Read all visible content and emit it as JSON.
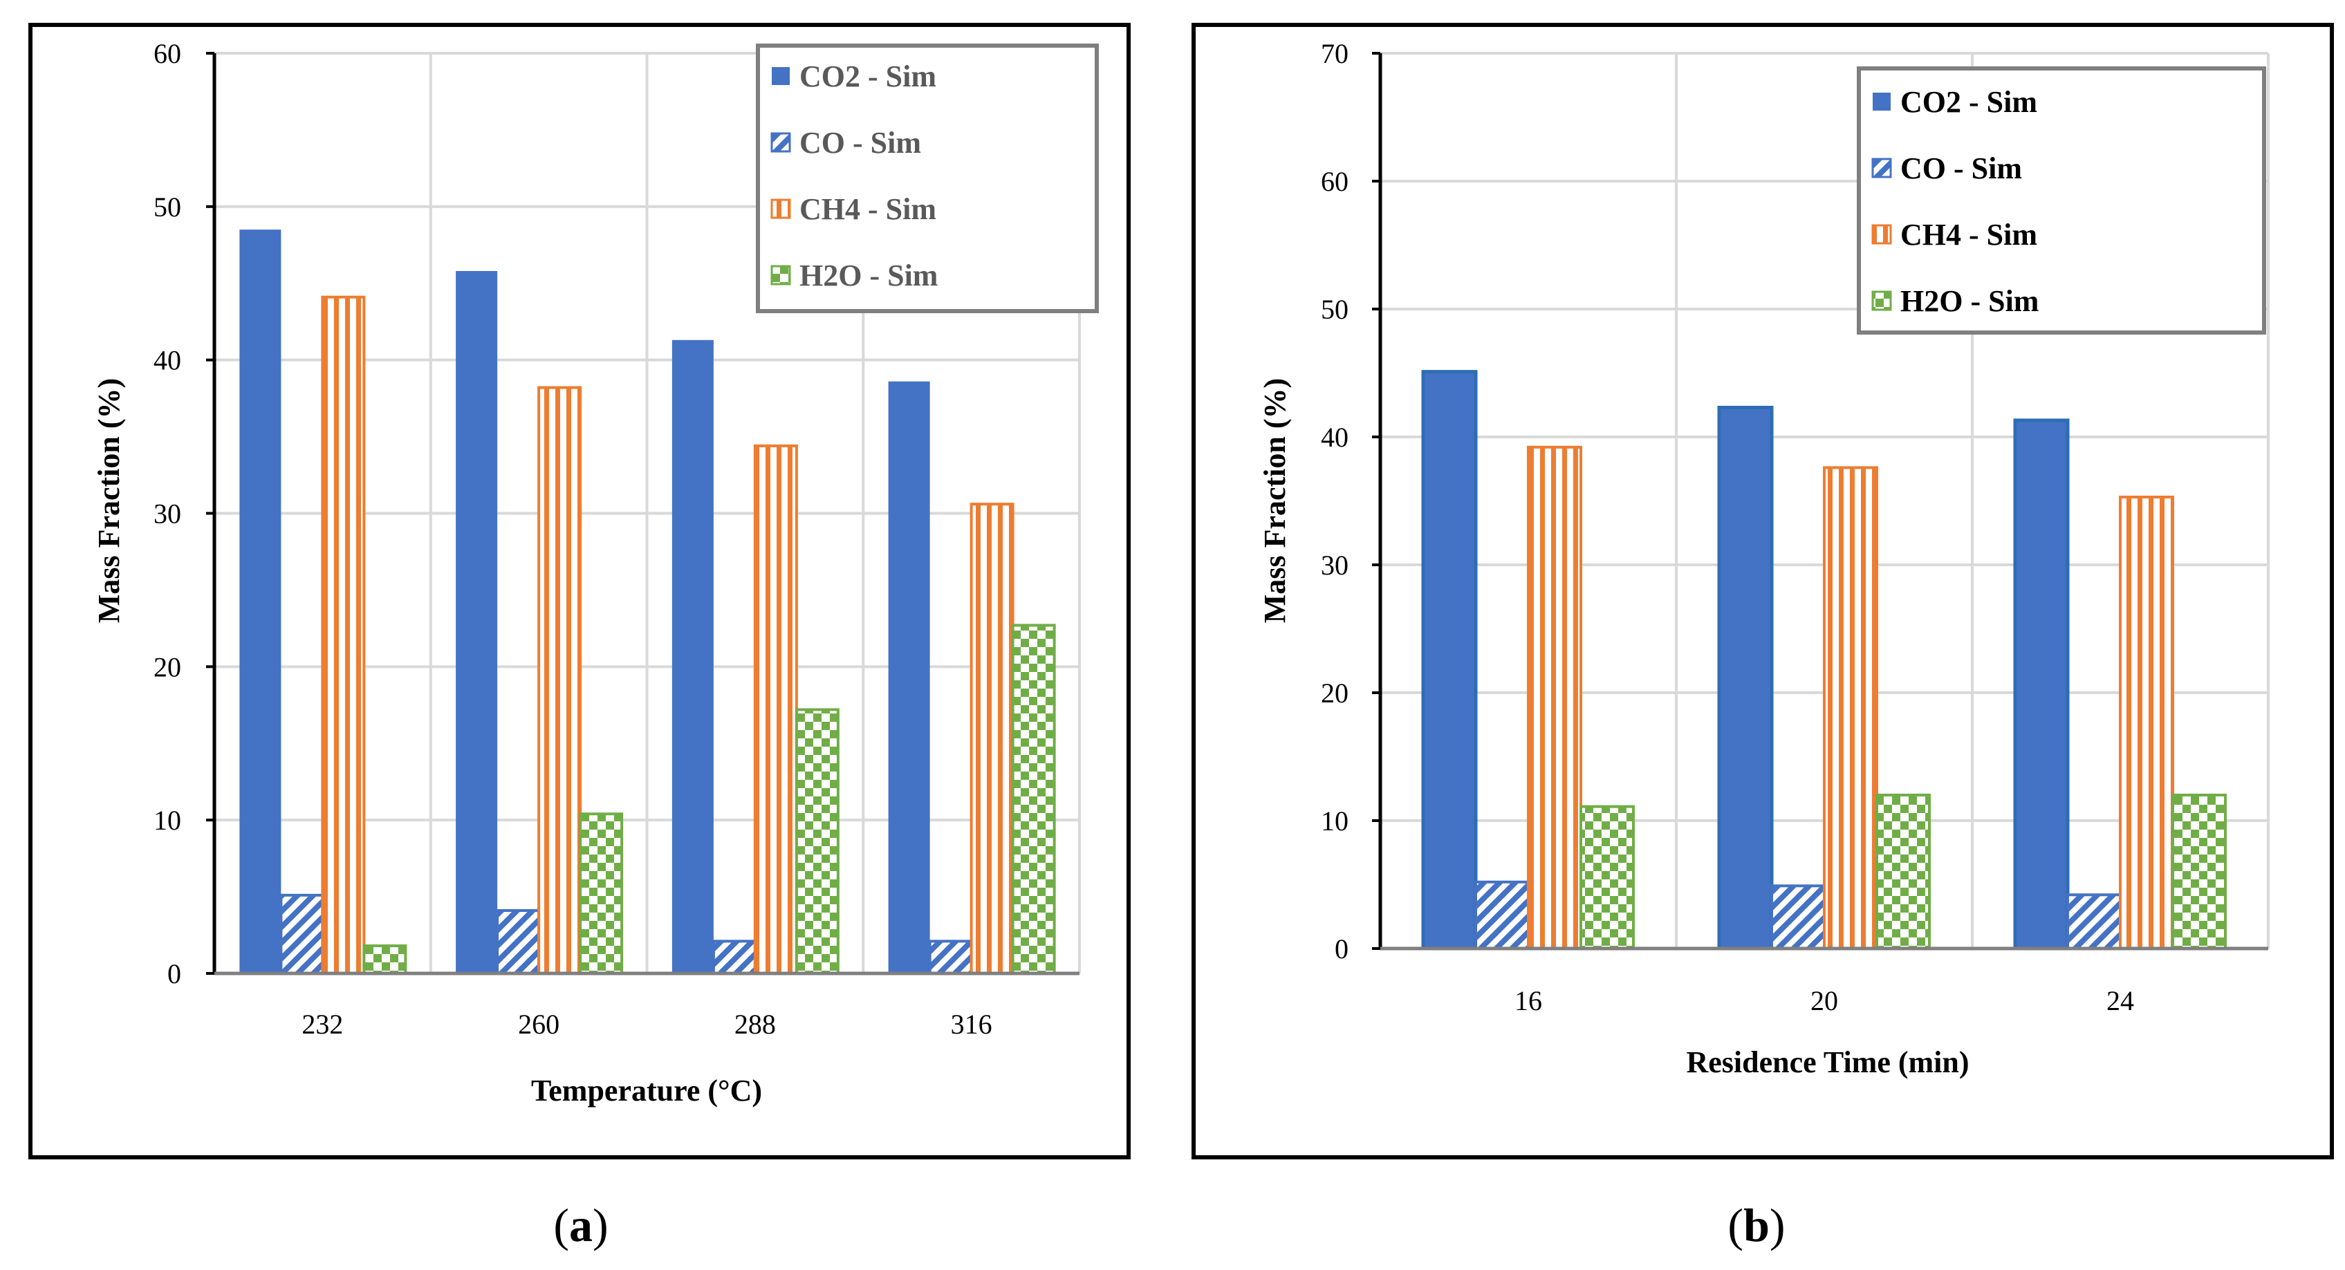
{
  "chart_data": [
    {
      "type": "bar",
      "panel_label": "a",
      "xlabel": "Temperature (°C)",
      "ylabel": "Mass Fraction (%)",
      "ylim": [
        0,
        60
      ],
      "ytick_step": 10,
      "grid": true,
      "legend_position": "top-right",
      "categories": [
        "232",
        "260",
        "288",
        "316"
      ],
      "series": [
        {
          "name": "CO2 - Sim",
          "color": "#4472C4",
          "pattern": "solid",
          "values": [
            48.5,
            45.8,
            41.3,
            38.6
          ]
        },
        {
          "name": "CO - Sim",
          "color": "#4472C4",
          "pattern": "diagonal",
          "values": [
            5.1,
            4.1,
            2.1,
            2.1
          ]
        },
        {
          "name": "CH4 - Sim",
          "color": "#ED7D31",
          "pattern": "vertical",
          "values": [
            44.1,
            38.2,
            34.4,
            30.6
          ]
        },
        {
          "name": "H2O - Sim",
          "color": "#70AD47",
          "pattern": "checker",
          "values": [
            1.8,
            10.4,
            17.2,
            22.7
          ]
        }
      ]
    },
    {
      "type": "bar",
      "panel_label": "b",
      "xlabel": "Residence Time (min)",
      "ylabel": "Mass Fraction (%)",
      "ylim": [
        0,
        70
      ],
      "ytick_step": 10,
      "grid": true,
      "legend_position": "top-right",
      "categories": [
        "16",
        "20",
        "24"
      ],
      "series": [
        {
          "name": "CO2 - Sim",
          "color": "#4472C4",
          "pattern": "solid",
          "values": [
            45.1,
            42.3,
            41.3
          ]
        },
        {
          "name": "CO - Sim",
          "color": "#4472C4",
          "pattern": "diagonal",
          "values": [
            5.2,
            4.9,
            4.2
          ]
        },
        {
          "name": "CH4 - Sim",
          "color": "#ED7D31",
          "pattern": "vertical",
          "values": [
            39.2,
            37.6,
            35.3
          ]
        },
        {
          "name": "H2O - Sim",
          "color": "#70AD47",
          "pattern": "checker",
          "values": [
            11.1,
            12.0,
            12.0
          ]
        }
      ]
    }
  ]
}
